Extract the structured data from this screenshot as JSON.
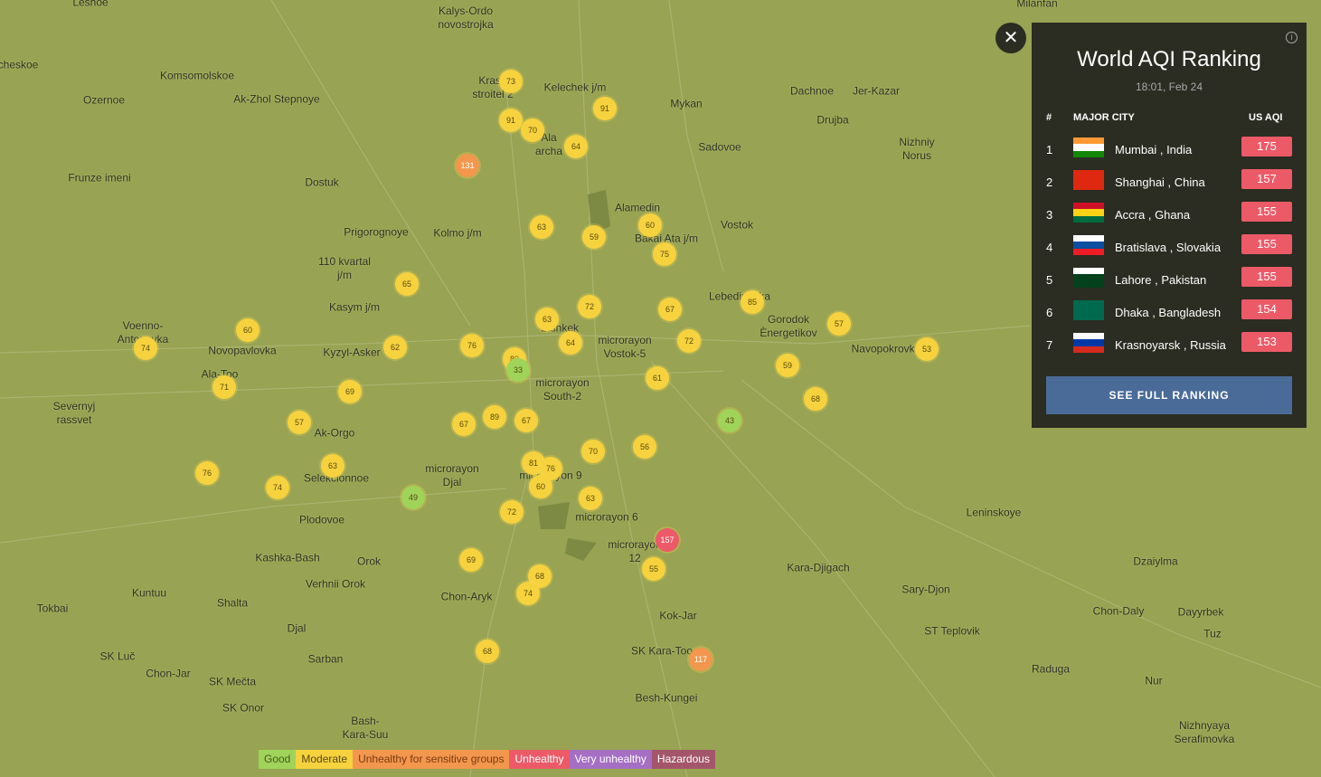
{
  "map": {
    "places": [
      "Leshoe",
      "Kalys-Ordo\nnovostrojka",
      "Milanfan",
      "cheskoe",
      "Komsomolskoe",
      "Ak-Zhol Stepnoye",
      "Ozernoe",
      "Krasn\nstroitel 2",
      "Kelechek j/m",
      "Mykan",
      "Dachnoe",
      "Jer-Kazar",
      "Drujba",
      "Nizhniy\nNorus",
      "Sadovoe",
      "Frunze imeni",
      "Dostuk",
      "Ala\narcha",
      "Alamedin",
      "Prigorognoye",
      "Kolmo j/m",
      "Bakai Ata j/m",
      "Vostok",
      "110 kvartal\nj/m",
      "Kasym j/m",
      "Lebedinovka",
      "Gorodok\nÈnergetikov",
      "Voenno-\nAntonovka",
      "Novopavlovka",
      "Kyzyl-Asker",
      "Bishkek",
      "microrayon\nVostok-5",
      "Navopokrovka",
      "Ala-Too",
      "microrayon\nSouth-2",
      "Severnyj\nrassvet",
      "Ak-Orgo",
      "microrayon\nDjal",
      "Selekcionnoe",
      "microrayon 9",
      "microrayon 6",
      "Plodovoe",
      "Leninskoye",
      "Kashka-Bash",
      "Orok",
      "microrayon\n12",
      "Kara-Djigach",
      "Dzaiylma",
      "Verhnii Orok",
      "Sary-Djon",
      "Kuntuu",
      "Chon-Aryk",
      "Shalta",
      "Tokbai",
      "Chon-Daly",
      "Dayyrbek",
      "Kok-Jar",
      "Djal",
      "ST Teplovik",
      "Tuz",
      "SK Luč",
      "Sarban",
      "SK Kara-Too",
      "Raduga",
      "Chon-Jar",
      "SK Mečta",
      "Nur",
      "Besh-Kungei",
      "SK Onor",
      "Bash-\nKara-Suu",
      "Nizhnyaya\nSerafimovka"
    ],
    "markers": [
      73,
      91,
      70,
      91,
      64,
      131,
      63,
      59,
      60,
      75,
      65,
      72,
      67,
      85,
      63,
      57,
      60,
      74,
      62,
      76,
      64,
      72,
      53,
      80,
      33,
      59,
      61,
      71,
      69,
      68,
      89,
      67,
      67,
      43,
      57,
      70,
      56,
      76,
      63,
      81,
      76,
      74,
      60,
      49,
      63,
      72,
      157,
      69,
      55,
      68,
      74,
      68,
      117
    ]
  },
  "ranking": {
    "title": "World AQI Ranking",
    "time": "18:01, Feb 24",
    "headers": [
      "#",
      "MAJOR CITY",
      "US AQI"
    ],
    "rows": [
      {
        "rank": "1",
        "city": "Mumbai , India",
        "aqi": "175"
      },
      {
        "rank": "2",
        "city": "Shanghai , China",
        "aqi": "157"
      },
      {
        "rank": "3",
        "city": "Accra , Ghana",
        "aqi": "155"
      },
      {
        "rank": "4",
        "city": "Bratislava , Slovakia",
        "aqi": "155"
      },
      {
        "rank": "5",
        "city": "Lahore , Pakistan",
        "aqi": "155"
      },
      {
        "rank": "6",
        "city": "Dhaka , Bangladesh",
        "aqi": "154"
      },
      {
        "rank": "7",
        "city": "Krasnoyarsk , Russia",
        "aqi": "153"
      }
    ],
    "button": "SEE FULL RANKING"
  },
  "legend": [
    "Good",
    "Moderate",
    "Unhealthy for sensitive groups",
    "Unhealthy",
    "Very unhealthy",
    "Hazardous"
  ]
}
